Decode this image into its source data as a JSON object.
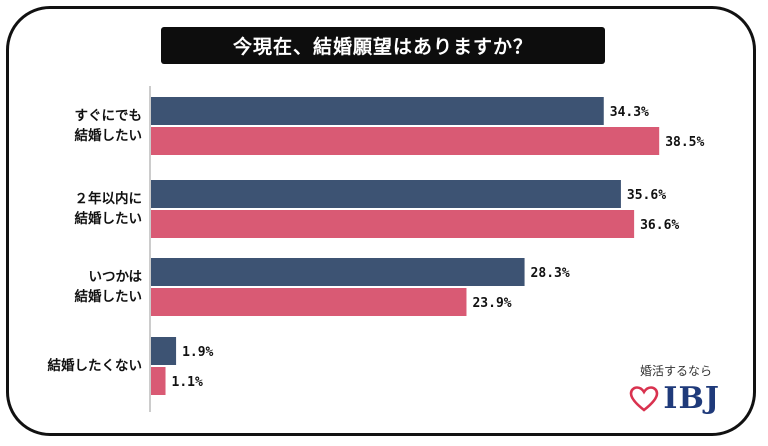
{
  "chart_data": {
    "type": "bar",
    "orientation": "horizontal",
    "title": "今現在、結婚願望はありますか？",
    "categories": [
      "すぐにでも\n結婚したい",
      "２年以内に\n結婚したい",
      "いつかは\n結婚したい",
      "結婚したくない"
    ],
    "series": [
      {
        "values": [
          34.3,
          35.6,
          28.3,
          1.9
        ],
        "color": "#3d5373"
      },
      {
        "values": [
          38.5,
          36.6,
          23.9,
          1.1
        ],
        "color": "#d95a74"
      }
    ],
    "value_labels": [
      [
        "34.3%",
        "35.6%",
        "28.3%",
        "1.9%"
      ],
      [
        "38.5%",
        "36.6%",
        "23.9%",
        "1.1%"
      ]
    ],
    "xlim": [
      0,
      40
    ],
    "grid": false,
    "legend": "none"
  },
  "brand": {
    "tagline": "婚活するなら",
    "name": "IBJ",
    "icon": "heart-outline-icon"
  }
}
